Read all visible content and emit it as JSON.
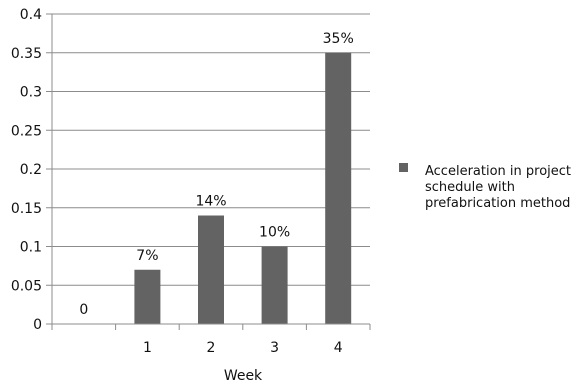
{
  "chart_data": {
    "type": "bar",
    "categories": [
      "",
      "1",
      "2",
      "3",
      "4"
    ],
    "series": [
      {
        "name": "Acceleration in project schedule with prefabrication method",
        "values": [
          0,
          0.07,
          0.14,
          0.1,
          0.35
        ],
        "data_labels": [
          "0",
          "7%",
          "14%",
          "10%",
          "35%"
        ],
        "color": "#636363"
      }
    ],
    "xlabel": "Week",
    "ylabel": "",
    "ylim": [
      0,
      0.4
    ],
    "yticks": [
      0,
      0.05,
      0.1,
      0.15,
      0.2,
      0.25,
      0.3,
      0.35,
      0.4
    ],
    "ytick_labels": [
      "0",
      "0.05",
      "0.1",
      "0.15",
      "0.2",
      "0.25",
      "0.3",
      "0.35",
      "0.4"
    ],
    "grid": true,
    "legend_position": "right",
    "legend_lines": [
      "Acceleration in project",
      "schedule with",
      "prefabrication method"
    ],
    "colors": {
      "bar": "#636363",
      "grid": "#8c8c8c",
      "axis": "#8c8c8c",
      "text": "#111111"
    }
  }
}
